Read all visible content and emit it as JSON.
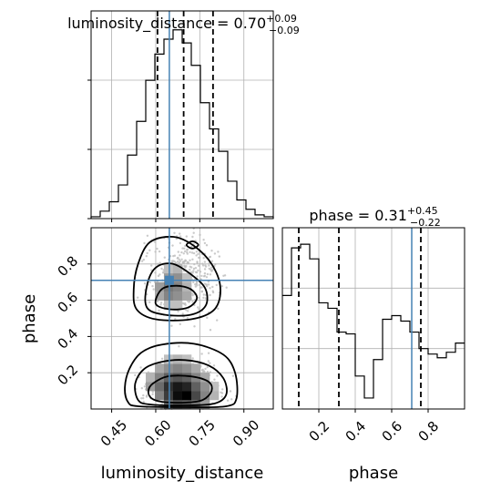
{
  "chart_data": {
    "type": "corner",
    "truth": {
      "luminosity_distance": 0.6463,
      "phase": 0.71
    },
    "luminosity_distance": {
      "title": "luminosity_distance = 0.70",
      "title_sup": "+0.09",
      "title_sub": "−0.09",
      "xlabel": "luminosity_distance",
      "xlim": [
        0.38,
        1.0
      ],
      "ticks": [
        0.45,
        0.6,
        0.75,
        0.9
      ],
      "tick_labels": [
        "0.45",
        "0.60",
        "0.75",
        "0.90"
      ],
      "quantiles": [
        0.606,
        0.695,
        0.795
      ],
      "hist_edges": [
        0.38,
        0.411,
        0.442,
        0.473,
        0.504,
        0.535,
        0.566,
        0.597,
        0.628,
        0.659,
        0.69,
        0.721,
        0.752,
        0.783,
        0.814,
        0.845,
        0.876,
        0.907,
        0.938,
        0.969,
        1.0
      ],
      "hist_counts": [
        1,
        4,
        9,
        18,
        34,
        52,
        74,
        88,
        96,
        101,
        94,
        82,
        62,
        48,
        36,
        20,
        10,
        5,
        2,
        1
      ]
    },
    "phase": {
      "title": "phase = 0.31",
      "title_sup": "+0.45",
      "title_sub": "−0.22",
      "xlabel": "phase",
      "ylabel": "phase",
      "lim": [
        0.0,
        1.0
      ],
      "ticks": [
        0.2,
        0.4,
        0.6,
        0.8
      ],
      "tick_labels": [
        "0.2",
        "0.4",
        "0.6",
        "0.8"
      ],
      "quantiles": [
        0.09,
        0.31,
        0.76
      ],
      "hist_edges": [
        0.0,
        0.05,
        0.1,
        0.15,
        0.2,
        0.25,
        0.3,
        0.35,
        0.4,
        0.45,
        0.5,
        0.55,
        0.6,
        0.65,
        0.7,
        0.75,
        0.8,
        0.85,
        0.9,
        0.95,
        1.0
      ],
      "hist_counts": [
        62,
        88,
        90,
        82,
        58,
        55,
        42,
        41,
        18,
        6,
        27,
        49,
        51,
        48,
        42,
        33,
        30,
        28,
        31,
        36
      ]
    },
    "density_2d": {
      "x_edges": [
        0.38,
        0.411,
        0.442,
        0.473,
        0.504,
        0.535,
        0.566,
        0.597,
        0.628,
        0.659,
        0.69,
        0.721,
        0.752,
        0.783,
        0.814,
        0.845,
        0.876,
        0.907,
        0.938,
        0.969,
        1.0
      ],
      "y_edges": [
        0.0,
        0.05,
        0.1,
        0.15,
        0.2,
        0.25,
        0.3,
        0.35,
        0.4,
        0.45,
        0.5,
        0.55,
        0.6,
        0.65,
        0.7,
        0.75,
        0.8,
        0.85,
        0.9,
        0.95,
        1.0
      ],
      "cells": [
        {
          "x": 8,
          "y": 0,
          "v": 0.55
        },
        {
          "x": 9,
          "y": 0,
          "v": 0.65
        },
        {
          "x": 10,
          "y": 0,
          "v": 0.6
        },
        {
          "x": 11,
          "y": 0,
          "v": 0.5
        },
        {
          "x": 12,
          "y": 0,
          "v": 0.35
        },
        {
          "x": 7,
          "y": 1,
          "v": 0.45
        },
        {
          "x": 8,
          "y": 1,
          "v": 0.75
        },
        {
          "x": 9,
          "y": 1,
          "v": 0.95
        },
        {
          "x": 10,
          "y": 1,
          "v": 1.0
        },
        {
          "x": 11,
          "y": 1,
          "v": 0.7
        },
        {
          "x": 12,
          "y": 1,
          "v": 0.45
        },
        {
          "x": 13,
          "y": 1,
          "v": 0.25
        },
        {
          "x": 6,
          "y": 2,
          "v": 0.35
        },
        {
          "x": 7,
          "y": 2,
          "v": 0.55
        },
        {
          "x": 8,
          "y": 2,
          "v": 0.8
        },
        {
          "x": 9,
          "y": 2,
          "v": 0.9
        },
        {
          "x": 10,
          "y": 2,
          "v": 0.85
        },
        {
          "x": 11,
          "y": 2,
          "v": 0.6
        },
        {
          "x": 12,
          "y": 2,
          "v": 0.4
        },
        {
          "x": 13,
          "y": 2,
          "v": 0.2
        },
        {
          "x": 6,
          "y": 3,
          "v": 0.25
        },
        {
          "x": 7,
          "y": 3,
          "v": 0.45
        },
        {
          "x": 8,
          "y": 3,
          "v": 0.6
        },
        {
          "x": 9,
          "y": 3,
          "v": 0.65
        },
        {
          "x": 10,
          "y": 3,
          "v": 0.6
        },
        {
          "x": 11,
          "y": 3,
          "v": 0.45
        },
        {
          "x": 12,
          "y": 3,
          "v": 0.3
        },
        {
          "x": 7,
          "y": 4,
          "v": 0.3
        },
        {
          "x": 8,
          "y": 4,
          "v": 0.4
        },
        {
          "x": 9,
          "y": 4,
          "v": 0.45
        },
        {
          "x": 10,
          "y": 4,
          "v": 0.4
        },
        {
          "x": 11,
          "y": 4,
          "v": 0.3
        },
        {
          "x": 8,
          "y": 5,
          "v": 0.2
        },
        {
          "x": 9,
          "y": 5,
          "v": 0.25
        },
        {
          "x": 10,
          "y": 5,
          "v": 0.2
        },
        {
          "x": 8,
          "y": 11,
          "v": 0.2
        },
        {
          "x": 9,
          "y": 11,
          "v": 0.2
        },
        {
          "x": 7,
          "y": 12,
          "v": 0.3
        },
        {
          "x": 8,
          "y": 12,
          "v": 0.45
        },
        {
          "x": 9,
          "y": 12,
          "v": 0.4
        },
        {
          "x": 10,
          "y": 12,
          "v": 0.3
        },
        {
          "x": 7,
          "y": 13,
          "v": 0.35
        },
        {
          "x": 8,
          "y": 13,
          "v": 0.5
        },
        {
          "x": 9,
          "y": 13,
          "v": 0.45
        },
        {
          "x": 10,
          "y": 13,
          "v": 0.25
        },
        {
          "x": 8,
          "y": 14,
          "v": 0.35
        },
        {
          "x": 9,
          "y": 14,
          "v": 0.4
        },
        {
          "x": 10,
          "y": 14,
          "v": 0.2
        },
        {
          "x": 8,
          "y": 15,
          "v": 0.2
        },
        {
          "x": 9,
          "y": 15,
          "v": 0.25
        }
      ]
    },
    "contours": [
      {
        "level": "inner-lower",
        "points": [
          [
            0.585,
            0.06
          ],
          [
            0.62,
            0.04
          ],
          [
            0.7,
            0.035
          ],
          [
            0.76,
            0.05
          ],
          [
            0.79,
            0.1
          ],
          [
            0.78,
            0.15
          ],
          [
            0.72,
            0.18
          ],
          [
            0.64,
            0.18
          ],
          [
            0.59,
            0.14
          ],
          [
            0.575,
            0.1
          ]
        ]
      },
      {
        "level": "mid-lower",
        "points": [
          [
            0.54,
            0.05
          ],
          [
            0.58,
            0.025
          ],
          [
            0.7,
            0.02
          ],
          [
            0.8,
            0.03
          ],
          [
            0.84,
            0.08
          ],
          [
            0.83,
            0.17
          ],
          [
            0.78,
            0.24
          ],
          [
            0.7,
            0.27
          ],
          [
            0.62,
            0.26
          ],
          [
            0.56,
            0.22
          ],
          [
            0.53,
            0.14
          ]
        ]
      },
      {
        "level": "outer-lower",
        "points": [
          [
            0.505,
            0.04
          ],
          [
            0.54,
            0.015
          ],
          [
            0.7,
            0.01
          ],
          [
            0.84,
            0.015
          ],
          [
            0.875,
            0.06
          ],
          [
            0.87,
            0.2
          ],
          [
            0.83,
            0.3
          ],
          [
            0.73,
            0.36
          ],
          [
            0.62,
            0.355
          ],
          [
            0.55,
            0.31
          ],
          [
            0.51,
            0.22
          ],
          [
            0.495,
            0.12
          ]
        ]
      },
      {
        "level": "inner-upper",
        "points": [
          [
            0.6,
            0.58
          ],
          [
            0.65,
            0.55
          ],
          [
            0.71,
            0.56
          ],
          [
            0.74,
            0.61
          ],
          [
            0.72,
            0.66
          ],
          [
            0.67,
            0.68
          ],
          [
            0.62,
            0.66
          ]
        ]
      },
      {
        "level": "mid-upper",
        "points": [
          [
            0.57,
            0.56
          ],
          [
            0.63,
            0.52
          ],
          [
            0.72,
            0.52
          ],
          [
            0.77,
            0.57
          ],
          [
            0.77,
            0.66
          ],
          [
            0.73,
            0.73
          ],
          [
            0.66,
            0.8
          ],
          [
            0.6,
            0.78
          ],
          [
            0.57,
            0.68
          ]
        ]
      },
      {
        "level": "outer-upper",
        "points": [
          [
            0.535,
            0.55
          ],
          [
            0.6,
            0.495
          ],
          [
            0.72,
            0.495
          ],
          [
            0.8,
            0.55
          ],
          [
            0.82,
            0.67
          ],
          [
            0.79,
            0.8
          ],
          [
            0.73,
            0.9
          ],
          [
            0.66,
            0.95
          ],
          [
            0.58,
            0.92
          ],
          [
            0.54,
            0.8
          ],
          [
            0.525,
            0.66
          ]
        ]
      },
      {
        "level": "small-top",
        "points": [
          [
            0.705,
            0.905
          ],
          [
            0.725,
            0.885
          ],
          [
            0.745,
            0.905
          ],
          [
            0.725,
            0.925
          ]
        ]
      }
    ]
  }
}
